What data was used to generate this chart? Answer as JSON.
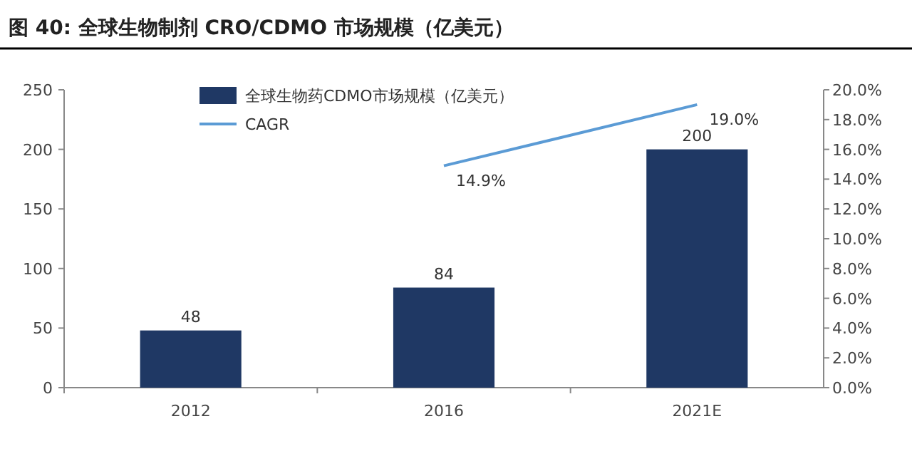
{
  "chart_data": {
    "type": "bar",
    "title": "图 40: 全球生物制剂 CRO/CDMO 市场规模（亿美元）",
    "categories": [
      "2012",
      "2016",
      "2021E"
    ],
    "series": [
      {
        "name": "全球生物药CDMO市场规模（亿美元）",
        "color": "#1f3864",
        "values": [
          48,
          84,
          200
        ],
        "value_labels": [
          "48",
          "84",
          "200"
        ]
      },
      {
        "name": "CAGR",
        "type": "line",
        "axis": "y2",
        "color": "#5b9bd5",
        "values": [
          null,
          14.9,
          19.0
        ],
        "value_labels": [
          null,
          "14.9%",
          "19.0%"
        ]
      }
    ],
    "ylim": [
      0,
      250
    ],
    "yticks": [
      0,
      50,
      100,
      150,
      200,
      250
    ],
    "y2lim": [
      0,
      20
    ],
    "y2ticks": [
      {
        "value": 0,
        "label": "0.0%"
      },
      {
        "value": 2,
        "label": "2.0%"
      },
      {
        "value": 4,
        "label": "4.0%"
      },
      {
        "value": 6,
        "label": "6.0%"
      },
      {
        "value": 8,
        "label": "8.0%"
      },
      {
        "value": 10,
        "label": "10.0%"
      },
      {
        "value": 12,
        "label": "12.0%"
      },
      {
        "value": 14,
        "label": "14.0%"
      },
      {
        "value": 16,
        "label": "16.0%"
      },
      {
        "value": 18,
        "label": "18.0%"
      },
      {
        "value": 20,
        "label": "20.0%"
      }
    ],
    "legend": "top",
    "grid": false,
    "marker": "none",
    "line_style": "solid"
  }
}
